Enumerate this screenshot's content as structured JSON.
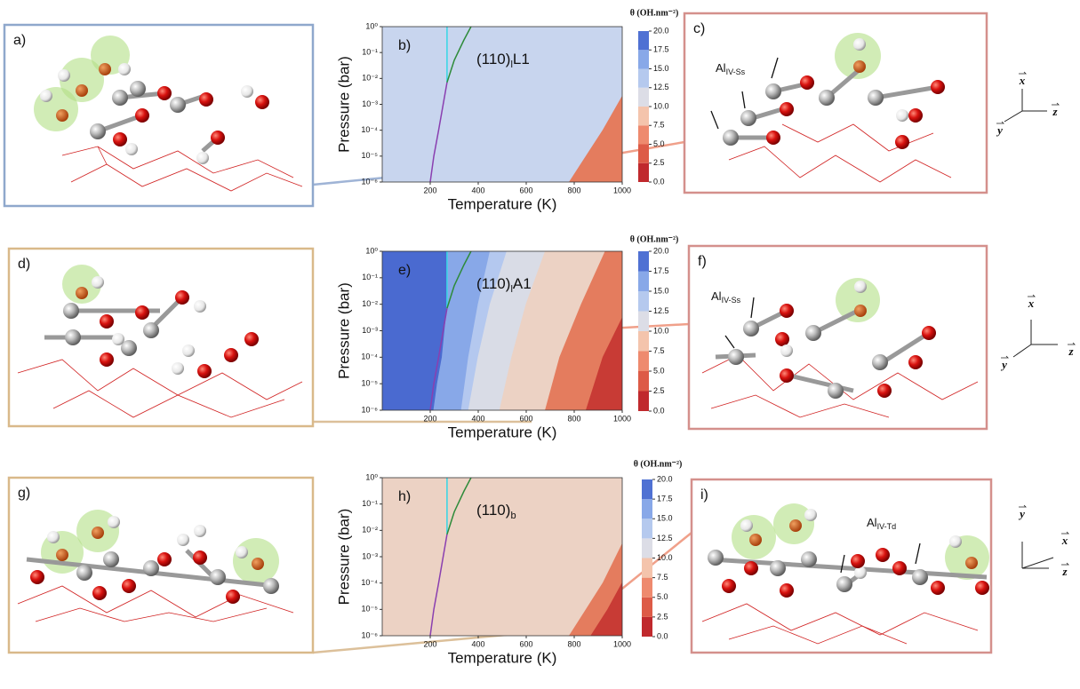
{
  "chart_data": [
    {
      "type": "contour",
      "panel_label": "b)",
      "title": "θ (OH.nm⁻²)",
      "annotation": {
        "text": "(110)",
        "sub": "l",
        "after": "L1"
      },
      "xlabel": "Temperature (K)",
      "ylabel": "Pressure (bar)",
      "xlim": [
        0,
        1000
      ],
      "ylim": [
        1e-06,
        1
      ],
      "xticks": [
        200,
        400,
        600,
        800,
        1000
      ],
      "yticks": [
        {
          "value": 1e-06,
          "label": "10⁻⁶"
        },
        {
          "value": 1e-05,
          "label": "10⁻⁵"
        },
        {
          "value": 0.0001,
          "label": "10⁻⁴"
        },
        {
          "value": 0.001,
          "label": "10⁻³"
        },
        {
          "value": 0.01,
          "label": "10⁻²"
        },
        {
          "value": 0.1,
          "label": "10⁻¹"
        },
        {
          "value": 1,
          "label": "10⁰"
        }
      ],
      "log_y": true,
      "background": {
        "value": 12.5,
        "color": "#c8d5ee"
      },
      "regions": [
        {
          "value": 5,
          "color": "#e47c5e",
          "x": [
            780,
            850,
            920,
            1000
          ],
          "y": [
            1e-06,
            1e-05,
            0.0001,
            0.002
          ]
        }
      ],
      "lines": [
        {
          "color": "#35d6e6",
          "x": [
            270,
            270
          ],
          "y": [
            0.007,
            1
          ]
        },
        {
          "color": "#2e8b3a",
          "x": [
            270,
            300,
            340,
            370
          ],
          "y": [
            0.007,
            0.05,
            0.3,
            1
          ]
        },
        {
          "color": "#8a3fb0",
          "x": [
            200,
            215,
            235,
            270
          ],
          "y": [
            1e-06,
            1e-05,
            0.0001,
            0.007
          ]
        }
      ],
      "colorbar": {
        "ticks": [
          {
            "value": 0,
            "label": "0.0"
          },
          {
            "value": 2.5,
            "label": "2.5"
          },
          {
            "value": 5,
            "label": "5.0"
          },
          {
            "value": 7.5,
            "label": "7.5"
          },
          {
            "value": 10,
            "label": "10.0"
          },
          {
            "value": 12.5,
            "label": "12.5"
          },
          {
            "value": 15,
            "label": "15.0"
          },
          {
            "value": 17.5,
            "label": "17.5"
          },
          {
            "value": 20,
            "label": "20.0"
          }
        ],
        "colors": [
          "#c0292d",
          "#dd5b47",
          "#ee8a6e",
          "#f4c4ac",
          "#dcdde6",
          "#b5c9ee",
          "#88a8e8",
          "#4f71d3"
        ]
      }
    },
    {
      "type": "contour",
      "panel_label": "e)",
      "title": "θ (OH.nm⁻²)",
      "annotation": {
        "text": "(110)",
        "sub": "l",
        "after": "A1"
      },
      "xlabel": "Temperature (K)",
      "ylabel": "Pressure (bar)",
      "xlim": [
        0,
        1000
      ],
      "ylim": [
        1e-06,
        1
      ],
      "xticks": [
        200,
        400,
        600,
        800,
        1000
      ],
      "yticks": [
        {
          "value": 1e-06,
          "label": "10⁻⁶"
        },
        {
          "value": 1e-05,
          "label": "10⁻⁵"
        },
        {
          "value": 0.0001,
          "label": "10⁻⁴"
        },
        {
          "value": 0.001,
          "label": "10⁻³"
        },
        {
          "value": 0.01,
          "label": "10⁻²"
        },
        {
          "value": 0.1,
          "label": "10⁻¹"
        },
        {
          "value": 1,
          "label": "10⁰"
        }
      ],
      "log_y": true,
      "background": {
        "value": 17.5,
        "color": "#4a6ad0"
      },
      "regions": [
        {
          "value": 15,
          "color": "#88a8e8",
          "x": [
            215,
            230,
            250,
            270,
            270
          ],
          "y": [
            1e-06,
            1e-05,
            0.0001,
            0.007,
            1
          ]
        },
        {
          "value": 12.5,
          "color": "#b4c8ef",
          "x": [
            330,
            360,
            400,
            450
          ],
          "y": [
            1e-06,
            0.0001,
            0.01,
            1
          ]
        },
        {
          "value": 10,
          "color": "#d9dce6",
          "x": [
            360,
            400,
            450,
            520
          ],
          "y": [
            1e-06,
            0.0001,
            0.01,
            1
          ]
        },
        {
          "value": 7.5,
          "color": "#ecd2c4",
          "x": [
            490,
            540,
            600,
            680
          ],
          "y": [
            1e-06,
            0.0001,
            0.01,
            1
          ]
        },
        {
          "value": 5,
          "color": "#e47c5e",
          "x": [
            680,
            740,
            830,
            930
          ],
          "y": [
            1e-06,
            0.0001,
            0.01,
            1
          ]
        },
        {
          "value": 2.5,
          "color": "#c83b35",
          "x": [
            850,
            920,
            1000
          ],
          "y": [
            1e-06,
            0.0001,
            0.003
          ]
        }
      ],
      "lines": [
        {
          "color": "#35d6e6",
          "x": [
            270,
            270
          ],
          "y": [
            0.007,
            1
          ]
        },
        {
          "color": "#2e8b3a",
          "x": [
            270,
            300,
            340,
            370
          ],
          "y": [
            0.007,
            0.05,
            0.3,
            1
          ]
        },
        {
          "color": "#8a3fb0",
          "x": [
            200,
            215,
            235,
            270
          ],
          "y": [
            1e-06,
            1e-05,
            0.0001,
            0.007
          ]
        }
      ],
      "colorbar": {
        "ticks": [
          {
            "value": 0,
            "label": "0.0"
          },
          {
            "value": 2.5,
            "label": "2.5"
          },
          {
            "value": 5,
            "label": "5.0"
          },
          {
            "value": 7.5,
            "label": "7.5"
          },
          {
            "value": 10,
            "label": "10.0"
          },
          {
            "value": 12.5,
            "label": "12.5"
          },
          {
            "value": 15,
            "label": "15.0"
          },
          {
            "value": 17.5,
            "label": "17.5"
          },
          {
            "value": 20,
            "label": "20.0"
          }
        ],
        "colors": [
          "#c0292d",
          "#dd5b47",
          "#ee8a6e",
          "#f4c4ac",
          "#dcdde6",
          "#b5c9ee",
          "#88a8e8",
          "#4f71d3"
        ]
      }
    },
    {
      "type": "contour",
      "panel_label": "h)",
      "title": "θ (OH.nm⁻²)",
      "annotation": {
        "text": "(110)",
        "sub": "b",
        "after": ""
      },
      "xlabel": "Temperature (K)",
      "ylabel": "Pressure (bar)",
      "xlim": [
        0,
        1000
      ],
      "ylim": [
        1e-06,
        1
      ],
      "xticks": [
        200,
        400,
        600,
        800,
        1000
      ],
      "yticks": [
        {
          "value": 1e-06,
          "label": "10⁻⁶"
        },
        {
          "value": 1e-05,
          "label": "10⁻⁵"
        },
        {
          "value": 0.0001,
          "label": "10⁻⁴"
        },
        {
          "value": 0.001,
          "label": "10⁻³"
        },
        {
          "value": 0.01,
          "label": "10⁻²"
        },
        {
          "value": 0.1,
          "label": "10⁻¹"
        },
        {
          "value": 1,
          "label": "10⁰"
        }
      ],
      "log_y": true,
      "background": {
        "value": 7.5,
        "color": "#ecd2c4"
      },
      "regions": [
        {
          "value": 5,
          "color": "#e47c5e",
          "x": [
            780,
            850,
            920,
            1000
          ],
          "y": [
            1e-06,
            1e-05,
            0.0001,
            0.003
          ]
        },
        {
          "value": 2.5,
          "color": "#c83b35",
          "x": [
            870,
            940,
            1000
          ],
          "y": [
            1e-06,
            1e-05,
            0.0001
          ]
        }
      ],
      "lines": [
        {
          "color": "#35d6e6",
          "x": [
            270,
            270
          ],
          "y": [
            0.007,
            1
          ]
        },
        {
          "color": "#2e8b3a",
          "x": [
            270,
            300,
            340,
            370
          ],
          "y": [
            0.007,
            0.05,
            0.3,
            1
          ]
        },
        {
          "color": "#8a3fb0",
          "x": [
            200,
            215,
            235,
            270
          ],
          "y": [
            1e-06,
            1e-05,
            0.0001,
            0.007
          ]
        }
      ],
      "colorbar": {
        "ticks": [
          {
            "value": 0,
            "label": "0.0"
          },
          {
            "value": 2.5,
            "label": "2.5"
          },
          {
            "value": 5,
            "label": "5.0"
          },
          {
            "value": 7.5,
            "label": "7.5"
          },
          {
            "value": 10,
            "label": "10.0"
          },
          {
            "value": 12.5,
            "label": "12.5"
          },
          {
            "value": 15,
            "label": "15.0"
          },
          {
            "value": 17.5,
            "label": "17.5"
          },
          {
            "value": 20,
            "label": "20.0"
          }
        ],
        "colors": [
          "#c0292d",
          "#dd5b47",
          "#ee8a6e",
          "#f4c4ac",
          "#dcdde6",
          "#b5c9ee",
          "#88a8e8",
          "#4f71d3"
        ]
      }
    }
  ],
  "structures": [
    {
      "label": "a)"
    },
    {
      "label": "c)",
      "annotation": {
        "text": "Al",
        "sub": "IV-Ss"
      }
    },
    {
      "label": "d)"
    },
    {
      "label": "f)",
      "annotation": {
        "text": "Al",
        "sub": "IV-Ss"
      }
    },
    {
      "label": "g)"
    },
    {
      "label": "i)",
      "annotation": {
        "text": "Al",
        "sub": "IV-Td"
      }
    }
  ],
  "triads": [
    {
      "labels": [
        "x",
        "y",
        "z"
      ]
    },
    {
      "labels": [
        "x",
        "y",
        "z"
      ]
    },
    {
      "labels": [
        "y",
        "x",
        "z"
      ]
    }
  ]
}
